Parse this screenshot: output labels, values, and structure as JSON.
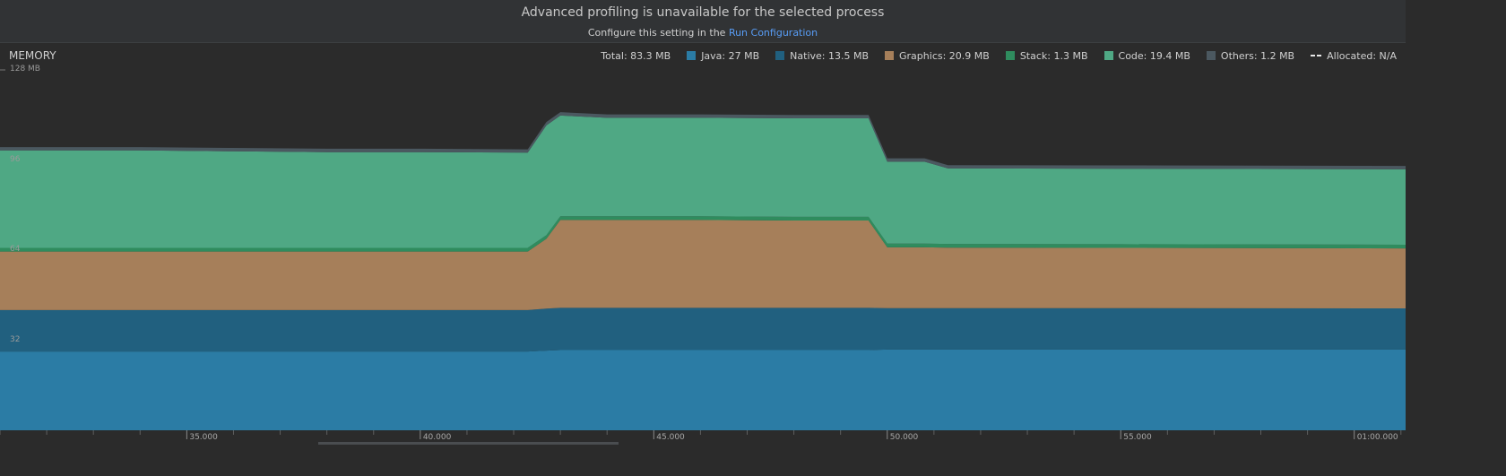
{
  "banner": {
    "title": "Advanced profiling is unavailable for the selected process",
    "subtitle_prefix": "Configure this setting in the ",
    "link_text": "Run Configuration"
  },
  "monitor": {
    "label": "MEMORY",
    "legend": [
      {
        "label": "Total: 83.3 MB",
        "swatch": null
      },
      {
        "label": "Java: 27 MB",
        "swatch": "#2b7ca5"
      },
      {
        "label": "Native: 13.5 MB",
        "swatch": "#21607f"
      },
      {
        "label": "Graphics: 20.9 MB",
        "swatch": "#a67f5a"
      },
      {
        "label": "Stack: 1.3 MB",
        "swatch": "#2f8c5e"
      },
      {
        "label": "Code: 19.4 MB",
        "swatch": "#4fa884"
      },
      {
        "label": "Others: 1.2 MB",
        "swatch": "#4b5860"
      },
      {
        "label": "Allocated: N/A",
        "swatch": "dashed"
      }
    ]
  },
  "chart_data": {
    "type": "area",
    "stacked": true,
    "y_ticks": [
      "128 MB",
      "96",
      "64",
      "32"
    ],
    "y_tick_values": [
      128,
      96,
      64,
      32
    ],
    "ylim": [
      0,
      128
    ],
    "x_tick_labels": [
      "35.000",
      "40.000",
      "45.000",
      "50.000",
      "55.000",
      "01:00.000"
    ],
    "x_tick_values": [
      35,
      40,
      45,
      50,
      55,
      60
    ],
    "xlim": [
      31.0,
      61.1
    ],
    "x": [
      31.0,
      34.0,
      36.0,
      38.0,
      40.0,
      42.3,
      42.7,
      43.0,
      44.0,
      46.0,
      48.0,
      49.6,
      50.0,
      50.8,
      51.3,
      55.0,
      61.1
    ],
    "series": [
      {
        "name": "Java",
        "color": "#2b7ca5",
        "values": [
          28.0,
          28.0,
          28.0,
          28.0,
          28.0,
          28.0,
          28.3,
          28.5,
          28.5,
          28.5,
          28.5,
          28.5,
          28.7,
          28.7,
          28.7,
          28.7,
          28.7
        ]
      },
      {
        "name": "Native",
        "color": "#21607f",
        "values": [
          14.7,
          14.7,
          14.7,
          14.7,
          14.7,
          14.7,
          14.9,
          15.0,
          15.0,
          15.0,
          15.0,
          15.0,
          14.7,
          14.7,
          14.7,
          14.7,
          14.6
        ]
      },
      {
        "name": "Graphics",
        "color": "#a67f5a",
        "values": [
          20.8,
          20.8,
          20.8,
          20.8,
          20.8,
          20.8,
          24.8,
          31.2,
          31.2,
          31.2,
          31.0,
          31.0,
          21.6,
          21.6,
          21.5,
          21.4,
          21.3
        ]
      },
      {
        "name": "Stack",
        "color": "#2f8c5e",
        "values": [
          1.3,
          1.3,
          1.3,
          1.3,
          1.3,
          1.3,
          1.3,
          1.3,
          1.3,
          1.3,
          1.3,
          1.3,
          1.3,
          1.3,
          1.3,
          1.3,
          1.3
        ]
      },
      {
        "name": "Code",
        "color": "#4fa884",
        "values": [
          34.6,
          34.6,
          34.3,
          34.0,
          34.0,
          33.8,
          39.0,
          35.8,
          35.0,
          35.0,
          35.0,
          35.0,
          29.1,
          29.1,
          26.8,
          26.8,
          26.8
        ]
      },
      {
        "name": "Others",
        "color": "#4b5860",
        "values": [
          1.2,
          1.2,
          1.2,
          1.2,
          1.2,
          1.2,
          1.2,
          1.2,
          1.2,
          1.2,
          1.2,
          1.2,
          1.2,
          1.2,
          1.2,
          1.2,
          1.2
        ]
      }
    ]
  }
}
